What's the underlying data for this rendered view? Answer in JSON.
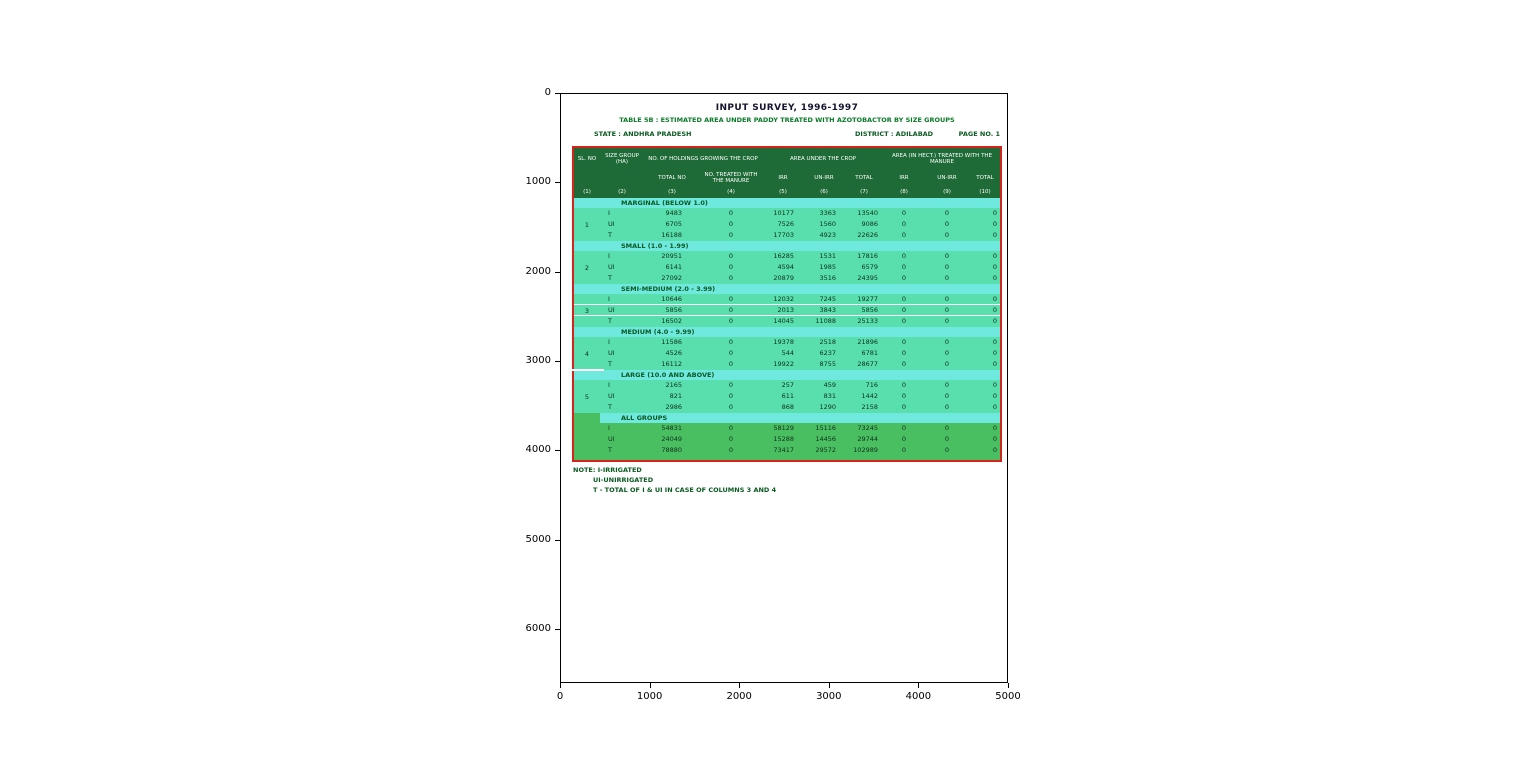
{
  "figure": {
    "x_ticks": [
      "0",
      "1000",
      "2000",
      "3000",
      "4000",
      "5000"
    ],
    "y_ticks": [
      "0",
      "1000",
      "2000",
      "3000",
      "4000",
      "5000",
      "6000"
    ]
  },
  "document": {
    "title": "INPUT SURVEY, 1996-1997",
    "subtitle": "TABLE 5B : ESTIMATED AREA UNDER PADDY TREATED WITH AZOTOBACTOR BY SIZE GROUPS",
    "state": "STATE : ANDHRA PRADESH",
    "district": "DISTRICT : ADILABAD",
    "page": "PAGE NO. 1",
    "notes": {
      "line1": "NOTE: I-IRRIGATED",
      "line2": "UI-UNIRRIGATED",
      "line3": "T - TOTAL OF I & UI IN CASE OF COLUMNS 3 AND 4"
    }
  },
  "colors": {
    "header_green": "#1e6b37",
    "group_label_turquoise": "#6fe8de",
    "data_row_seafoam": "#58dfad",
    "all_groups_green": "#4abf62",
    "table_border_red": "#d8231d",
    "green_text": "#0a5a20"
  },
  "table": {
    "header": {
      "col1": "SL. NO",
      "col2": "SIZE GROUP (HA)",
      "span_holdings": "NO. OF HOLDINGS GROWING THE CROP",
      "span_area": "AREA UNDER THE CROP",
      "span_treated": "AREA (IN HECT.) TREATED WITH THE MANURE",
      "sub": [
        "TOTAL NO",
        "NO. TREATED WITH THE MANURE",
        "IRR",
        "UN-IRR",
        "TOTAL",
        "IRR",
        "UN-IRR",
        "TOTAL"
      ],
      "colnums": [
        "(1)",
        "(2)",
        "(3)",
        "(4)",
        "(5)",
        "(6)",
        "(7)",
        "(8)",
        "(9)",
        "(10)"
      ]
    },
    "row_labels": [
      "I",
      "UI",
      "T"
    ],
    "groups": [
      {
        "sl": "1",
        "label": "MARGINAL (BELOW 1.0)",
        "rows": [
          [
            "9483",
            "0",
            "10177",
            "3363",
            "13540",
            "0",
            "0",
            "0"
          ],
          [
            "6705",
            "0",
            "7526",
            "1560",
            "9086",
            "0",
            "0",
            "0"
          ],
          [
            "16188",
            "0",
            "17703",
            "4923",
            "22626",
            "0",
            "0",
            "0"
          ]
        ]
      },
      {
        "sl": "2",
        "label": "SMALL (1.0 - 1.99)",
        "rows": [
          [
            "20951",
            "0",
            "16285",
            "1531",
            "17816",
            "0",
            "0",
            "0"
          ],
          [
            "6141",
            "0",
            "4594",
            "1985",
            "6579",
            "0",
            "0",
            "0"
          ],
          [
            "27092",
            "0",
            "20879",
            "3516",
            "24395",
            "0",
            "0",
            "0"
          ]
        ]
      },
      {
        "sl": "3",
        "label": "SEMI-MEDIUM (2.0 - 3.99)",
        "sep": true,
        "rows": [
          [
            "10646",
            "0",
            "12032",
            "7245",
            "19277",
            "0",
            "0",
            "0"
          ],
          [
            "5856",
            "0",
            "2013",
            "3843",
            "5856",
            "0",
            "0",
            "0"
          ],
          [
            "16502",
            "0",
            "14045",
            "11088",
            "25133",
            "0",
            "0",
            "0"
          ]
        ]
      },
      {
        "sl": "4",
        "label": "MEDIUM (4.0 - 9.99)",
        "rows": [
          [
            "11586",
            "0",
            "19378",
            "2518",
            "21896",
            "0",
            "0",
            "0"
          ],
          [
            "4526",
            "0",
            "544",
            "6237",
            "6781",
            "0",
            "0",
            "0"
          ],
          [
            "16112",
            "0",
            "19922",
            "8755",
            "28677",
            "0",
            "0",
            "0"
          ]
        ]
      },
      {
        "sl": "5",
        "label": "LARGE (10.0 AND ABOVE)",
        "topline": true,
        "rows": [
          [
            "2165",
            "0",
            "257",
            "459",
            "716",
            "0",
            "0",
            "0"
          ],
          [
            "821",
            "0",
            "611",
            "831",
            "1442",
            "0",
            "0",
            "0"
          ],
          [
            "2986",
            "0",
            "868",
            "1290",
            "2158",
            "0",
            "0",
            "0"
          ]
        ]
      },
      {
        "sl": "",
        "label": "ALL GROUPS",
        "all": true,
        "rows": [
          [
            "54831",
            "0",
            "58129",
            "15116",
            "73245",
            "0",
            "0",
            "0"
          ],
          [
            "24049",
            "0",
            "15288",
            "14456",
            "29744",
            "0",
            "0",
            "0"
          ],
          [
            "78880",
            "0",
            "73417",
            "29572",
            "102989",
            "0",
            "0",
            "0"
          ]
        ]
      }
    ]
  }
}
